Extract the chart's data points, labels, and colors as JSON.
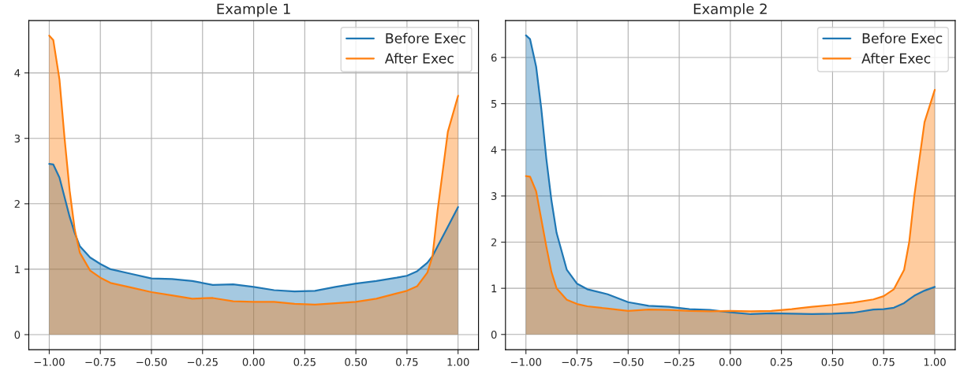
{
  "chart_data": [
    {
      "type": "area",
      "title": "Example 1",
      "x": [
        -1,
        -0.98,
        -0.95,
        -0.925,
        -0.9,
        -0.875,
        -0.85,
        -0.8,
        -0.75,
        -0.7,
        -0.6,
        -0.5,
        -0.4,
        -0.3,
        -0.2,
        -0.1,
        0,
        0.1,
        0.2,
        0.3,
        0.4,
        0.5,
        0.6,
        0.7,
        0.75,
        0.8,
        0.85,
        0.875,
        0.9,
        0.95,
        1.0
      ],
      "series": [
        {
          "name": "Before Exec",
          "color": "#1f77b4",
          "values": [
            2.61,
            2.6,
            2.4,
            2.1,
            1.8,
            1.55,
            1.35,
            1.18,
            1.08,
            1.0,
            0.93,
            0.86,
            0.85,
            0.82,
            0.76,
            0.77,
            0.73,
            0.68,
            0.66,
            0.67,
            0.73,
            0.78,
            0.82,
            0.87,
            0.9,
            0.97,
            1.1,
            1.2,
            1.35,
            1.65,
            1.95
          ]
        },
        {
          "name": "After Exec",
          "color": "#ff7f0e",
          "values": [
            4.57,
            4.5,
            3.9,
            3.0,
            2.2,
            1.6,
            1.25,
            0.98,
            0.87,
            0.79,
            0.72,
            0.65,
            0.6,
            0.55,
            0.56,
            0.51,
            0.5,
            0.5,
            0.47,
            0.46,
            0.48,
            0.5,
            0.55,
            0.63,
            0.67,
            0.74,
            0.95,
            1.2,
            1.9,
            3.1,
            3.65
          ]
        }
      ],
      "xlim": [
        -1.1,
        1.1
      ],
      "xticks": [
        {
          "value": -1,
          "label": "−1.00"
        },
        {
          "value": -0.75,
          "label": "−0.75"
        },
        {
          "value": -0.5,
          "label": "−0.50"
        },
        {
          "value": -0.25,
          "label": "−0.25"
        },
        {
          "value": 0,
          "label": "0.00"
        },
        {
          "value": 0.25,
          "label": "0.25"
        },
        {
          "value": 0.5,
          "label": "0.50"
        },
        {
          "value": 0.75,
          "label": "0.75"
        },
        {
          "value": 1,
          "label": "1.00"
        }
      ],
      "ylim": [
        -0.23,
        4.8
      ],
      "yticks": [
        0,
        1,
        2,
        3,
        4
      ],
      "grid": true,
      "legend": "top right"
    },
    {
      "type": "area",
      "title": "Example 2",
      "x": [
        -1,
        -0.98,
        -0.95,
        -0.925,
        -0.9,
        -0.875,
        -0.85,
        -0.8,
        -0.75,
        -0.7,
        -0.6,
        -0.5,
        -0.4,
        -0.3,
        -0.2,
        -0.1,
        0,
        0.1,
        0.2,
        0.3,
        0.4,
        0.5,
        0.6,
        0.7,
        0.75,
        0.8,
        0.85,
        0.875,
        0.9,
        0.95,
        1.0
      ],
      "series": [
        {
          "name": "Before Exec",
          "color": "#1f77b4",
          "values": [
            6.48,
            6.4,
            5.8,
            4.9,
            3.8,
            2.9,
            2.2,
            1.4,
            1.1,
            0.98,
            0.87,
            0.7,
            0.62,
            0.6,
            0.55,
            0.53,
            0.48,
            0.44,
            0.46,
            0.45,
            0.44,
            0.45,
            0.47,
            0.54,
            0.55,
            0.58,
            0.68,
            0.76,
            0.84,
            0.95,
            1.03
          ]
        },
        {
          "name": "After Exec",
          "color": "#ff7f0e",
          "values": [
            3.43,
            3.42,
            3.1,
            2.5,
            1.9,
            1.35,
            1.0,
            0.75,
            0.66,
            0.61,
            0.56,
            0.51,
            0.54,
            0.53,
            0.51,
            0.5,
            0.51,
            0.5,
            0.51,
            0.55,
            0.6,
            0.64,
            0.69,
            0.76,
            0.83,
            0.98,
            1.4,
            2.0,
            3.0,
            4.6,
            5.3
          ]
        }
      ],
      "xlim": [
        -1.1,
        1.1
      ],
      "xticks": [
        {
          "value": -1,
          "label": "−1.00"
        },
        {
          "value": -0.75,
          "label": "−0.75"
        },
        {
          "value": -0.5,
          "label": "−0.50"
        },
        {
          "value": -0.25,
          "label": "−0.25"
        },
        {
          "value": 0,
          "label": "0.00"
        },
        {
          "value": 0.25,
          "label": "0.25"
        },
        {
          "value": 0.5,
          "label": "0.50"
        },
        {
          "value": 0.75,
          "label": "0.75"
        },
        {
          "value": 1,
          "label": "1.00"
        }
      ],
      "ylim": [
        -0.33,
        6.8
      ],
      "yticks": [
        0,
        1,
        2,
        3,
        4,
        5,
        6
      ],
      "grid": true,
      "legend": "top right"
    }
  ]
}
